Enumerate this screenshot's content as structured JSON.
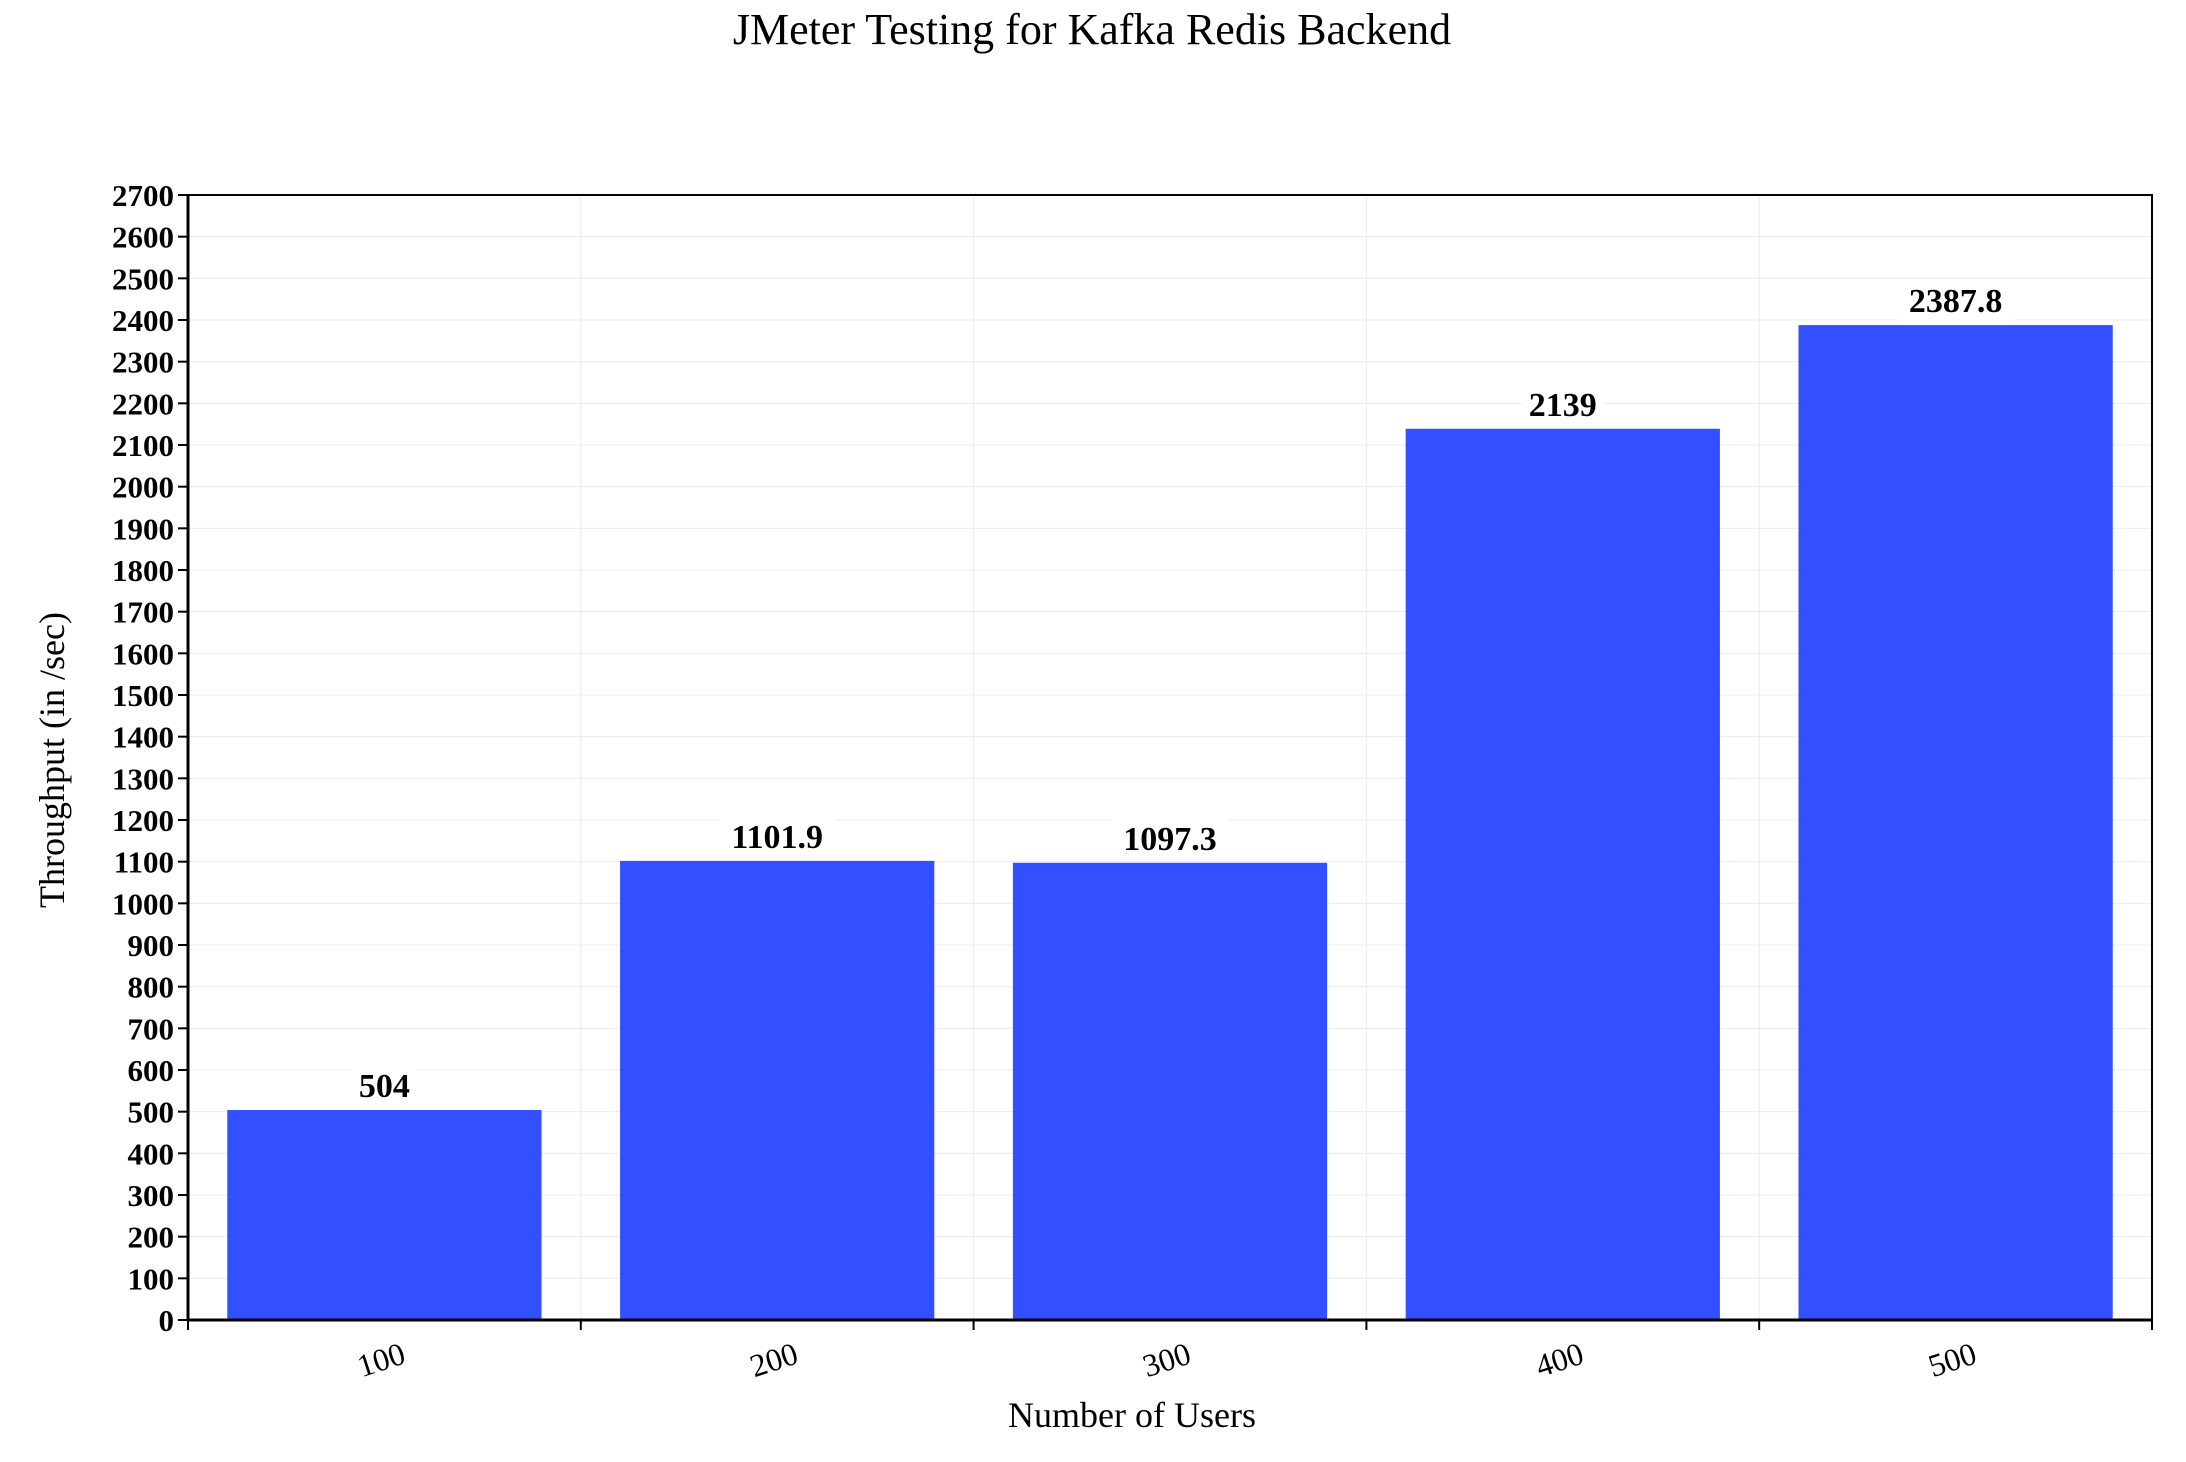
{
  "chart_data": {
    "type": "bar",
    "title": "JMeter Testing for Kafka Redis Backend",
    "xlabel": "Number of Users",
    "ylabel": "Throughput (in /sec)",
    "categories": [
      "100",
      "200",
      "300",
      "400",
      "500"
    ],
    "values": [
      504,
      1101.9,
      1097.3,
      2139,
      2387.8
    ],
    "data_labels": [
      "504",
      "1101.9",
      "1097.3",
      "2139",
      "2387.8"
    ],
    "ylim": [
      0,
      2700
    ],
    "ytick_step": 100,
    "grid": true,
    "legend": "none",
    "bar_color": "#3350FF"
  }
}
